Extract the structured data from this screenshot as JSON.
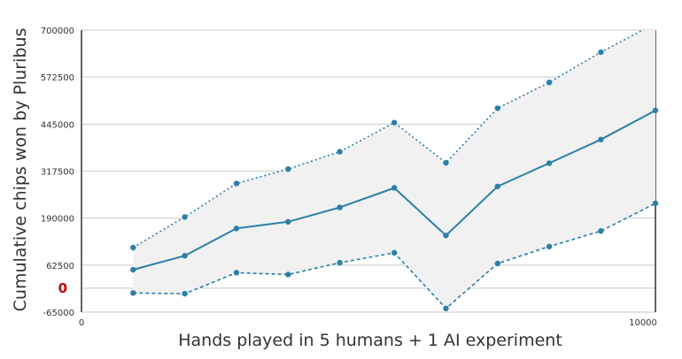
{
  "chart_data": {
    "type": "line",
    "title": "",
    "xlabel": "Hands played in 5 humans + 1 AI experiment",
    "ylabel": "Cumulative chips won by Pluribus",
    "xlim": [
      0,
      10000
    ],
    "ylim": [
      -65000,
      700000
    ],
    "x_ticks": [
      "0",
      "10000"
    ],
    "y_ticks": [
      "700000",
      "572500",
      "445000",
      "317500",
      "190000",
      "62500",
      "-65000"
    ],
    "zero_label": "0",
    "grid": true,
    "legend": "none",
    "x": [
      900,
      1800,
      2700,
      3600,
      4500,
      5450,
      6350,
      7250,
      8150,
      9050,
      10000
    ],
    "series": [
      {
        "role": "mean",
        "style": "solid",
        "values": [
          50000,
          88000,
          162000,
          180000,
          219000,
          272000,
          143000,
          276000,
          339000,
          403000,
          482000
        ]
      },
      {
        "role": "upper",
        "style": "dotted",
        "values": [
          110000,
          193000,
          284000,
          323000,
          370000,
          449000,
          340000,
          488000,
          558000,
          640000,
          718000
        ]
      },
      {
        "role": "lower",
        "style": "dashed",
        "values": [
          -13000,
          -15000,
          42000,
          37000,
          69000,
          96000,
          -55000,
          67000,
          113000,
          155000,
          230000
        ]
      }
    ],
    "colors": {
      "line": "#2b7fa8",
      "band": "#f1f1f1",
      "grid": "#c9c9c9",
      "axis": "#333333",
      "zero_label": "#c00000"
    }
  }
}
